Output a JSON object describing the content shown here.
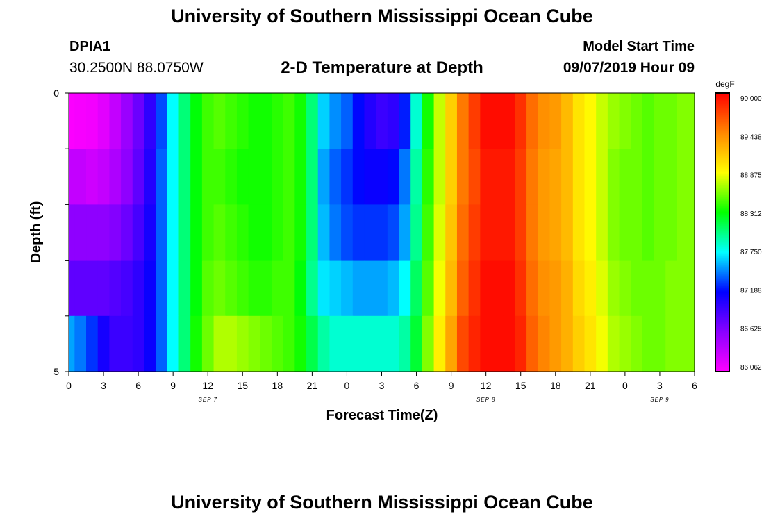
{
  "header": {
    "title": "University of Southern Mississippi Ocean Cube",
    "station_id": "DPIA1",
    "station_coords": "30.2500N 88.0750W",
    "plot_title": "2-D Temperature at Depth",
    "model_start_label": "Model Start Time",
    "model_start_value": "09/07/2019 Hour 09"
  },
  "footer": {
    "title": "University of Southern Mississippi Ocean Cube"
  },
  "chart_data": {
    "type": "heatmap",
    "title": "2-D Temperature at Depth",
    "xlabel": "Forecast Time(Z)",
    "ylabel": "Depth (ft)",
    "y_tick_labels": [
      "0",
      "5"
    ],
    "ylim": [
      0,
      5
    ],
    "x_tick_labels": [
      "0",
      "3",
      "6",
      "9",
      "12",
      "15",
      "18",
      "21",
      "0",
      "3",
      "6",
      "9",
      "12",
      "15",
      "18",
      "21",
      "0",
      "3",
      "6"
    ],
    "date_labels": [
      {
        "text": "SEP 7",
        "hour": 12
      },
      {
        "text": "SEP 8",
        "hour": 36
      },
      {
        "text": "SEP 9",
        "hour": 51
      }
    ],
    "xlim_hours": [
      0,
      54
    ],
    "hours": [
      0,
      1,
      2,
      3,
      4,
      5,
      6,
      7,
      8,
      9,
      10,
      11,
      12,
      13,
      14,
      15,
      16,
      17,
      18,
      19,
      20,
      21,
      22,
      23,
      24,
      25,
      26,
      27,
      28,
      29,
      30,
      31,
      32,
      33,
      34,
      35,
      36,
      37,
      38,
      39,
      40,
      41,
      42,
      43,
      44,
      45,
      46,
      47,
      48,
      49,
      50,
      51,
      52,
      53,
      54
    ],
    "depth_rows": [
      0.5,
      1.5,
      2.5,
      3.5,
      4.5
    ],
    "values_degF": [
      [
        86.08,
        86.1,
        86.12,
        86.2,
        86.35,
        86.55,
        86.75,
        87.0,
        87.35,
        87.75,
        88.05,
        88.3,
        88.45,
        88.5,
        88.45,
        88.4,
        88.35,
        88.35,
        88.4,
        88.45,
        88.35,
        88.05,
        87.65,
        87.5,
        87.4,
        87.2,
        87.05,
        86.95,
        87.0,
        87.25,
        87.85,
        88.35,
        88.75,
        89.1,
        89.5,
        89.75,
        89.95,
        89.95,
        89.95,
        89.8,
        89.55,
        89.4,
        89.35,
        89.2,
        89.0,
        88.9,
        88.75,
        88.65,
        88.6,
        88.55,
        88.5,
        88.55,
        88.55,
        88.6,
        88.6
      ],
      [
        86.35,
        86.35,
        86.3,
        86.35,
        86.45,
        86.6,
        86.8,
        87.05,
        87.4,
        87.75,
        88.05,
        88.3,
        88.45,
        88.45,
        88.4,
        88.35,
        88.35,
        88.35,
        88.4,
        88.45,
        88.35,
        88.05,
        87.55,
        87.4,
        87.3,
        87.2,
        87.15,
        87.15,
        87.2,
        87.45,
        87.95,
        88.4,
        88.75,
        89.1,
        89.5,
        89.7,
        89.9,
        89.9,
        89.9,
        89.75,
        89.5,
        89.35,
        89.3,
        89.2,
        89.0,
        88.9,
        88.75,
        88.6,
        88.55,
        88.55,
        88.5,
        88.55,
        88.55,
        88.6,
        88.6
      ],
      [
        86.6,
        86.6,
        86.6,
        86.6,
        86.65,
        86.75,
        86.9,
        87.1,
        87.4,
        87.75,
        88.05,
        88.3,
        88.45,
        88.5,
        88.45,
        88.4,
        88.35,
        88.35,
        88.4,
        88.45,
        88.35,
        88.05,
        87.6,
        87.45,
        87.35,
        87.3,
        87.3,
        87.3,
        87.35,
        87.55,
        88.0,
        88.45,
        88.8,
        89.15,
        89.55,
        89.75,
        89.9,
        89.9,
        89.9,
        89.75,
        89.5,
        89.35,
        89.3,
        89.2,
        89.0,
        88.9,
        88.75,
        88.6,
        88.55,
        88.55,
        88.5,
        88.55,
        88.55,
        88.6,
        88.6
      ],
      [
        86.8,
        86.8,
        86.8,
        86.8,
        86.85,
        86.9,
        87.0,
        87.15,
        87.4,
        87.75,
        88.05,
        88.3,
        88.5,
        88.55,
        88.5,
        88.45,
        88.4,
        88.4,
        88.45,
        88.45,
        88.3,
        88.0,
        87.7,
        87.65,
        87.6,
        87.55,
        87.55,
        87.55,
        87.6,
        87.75,
        88.1,
        88.5,
        88.85,
        89.2,
        89.6,
        89.8,
        89.95,
        89.95,
        89.95,
        89.8,
        89.55,
        89.4,
        89.35,
        89.25,
        89.05,
        88.95,
        88.8,
        88.65,
        88.6,
        88.55,
        88.55,
        88.55,
        88.6,
        88.6,
        88.6
      ],
      [
        87.55,
        87.45,
        87.3,
        87.1,
        86.95,
        86.95,
        87.0,
        87.15,
        87.4,
        87.75,
        88.05,
        88.35,
        88.55,
        88.7,
        88.7,
        88.65,
        88.6,
        88.55,
        88.5,
        88.45,
        88.35,
        88.15,
        87.95,
        87.85,
        87.85,
        87.85,
        87.85,
        87.85,
        87.85,
        87.95,
        88.2,
        88.6,
        88.95,
        89.3,
        89.7,
        89.85,
        89.95,
        89.95,
        89.95,
        89.85,
        89.6,
        89.45,
        89.35,
        89.25,
        89.1,
        89.0,
        88.85,
        88.7,
        88.65,
        88.6,
        88.55,
        88.55,
        88.6,
        88.6,
        88.6
      ]
    ],
    "colorbar": {
      "unit": "degF",
      "min": 86.062,
      "max": 90.0,
      "tick_labels": [
        "90.000",
        "89.438",
        "88.875",
        "88.312",
        "87.750",
        "87.188",
        "86.625",
        "86.062"
      ],
      "colors": [
        "#ff00ff",
        "#8a00ff",
        "#0000ff",
        "#00ffff",
        "#00ff00",
        "#ffff00",
        "#ff8800",
        "#ff0000"
      ]
    }
  }
}
